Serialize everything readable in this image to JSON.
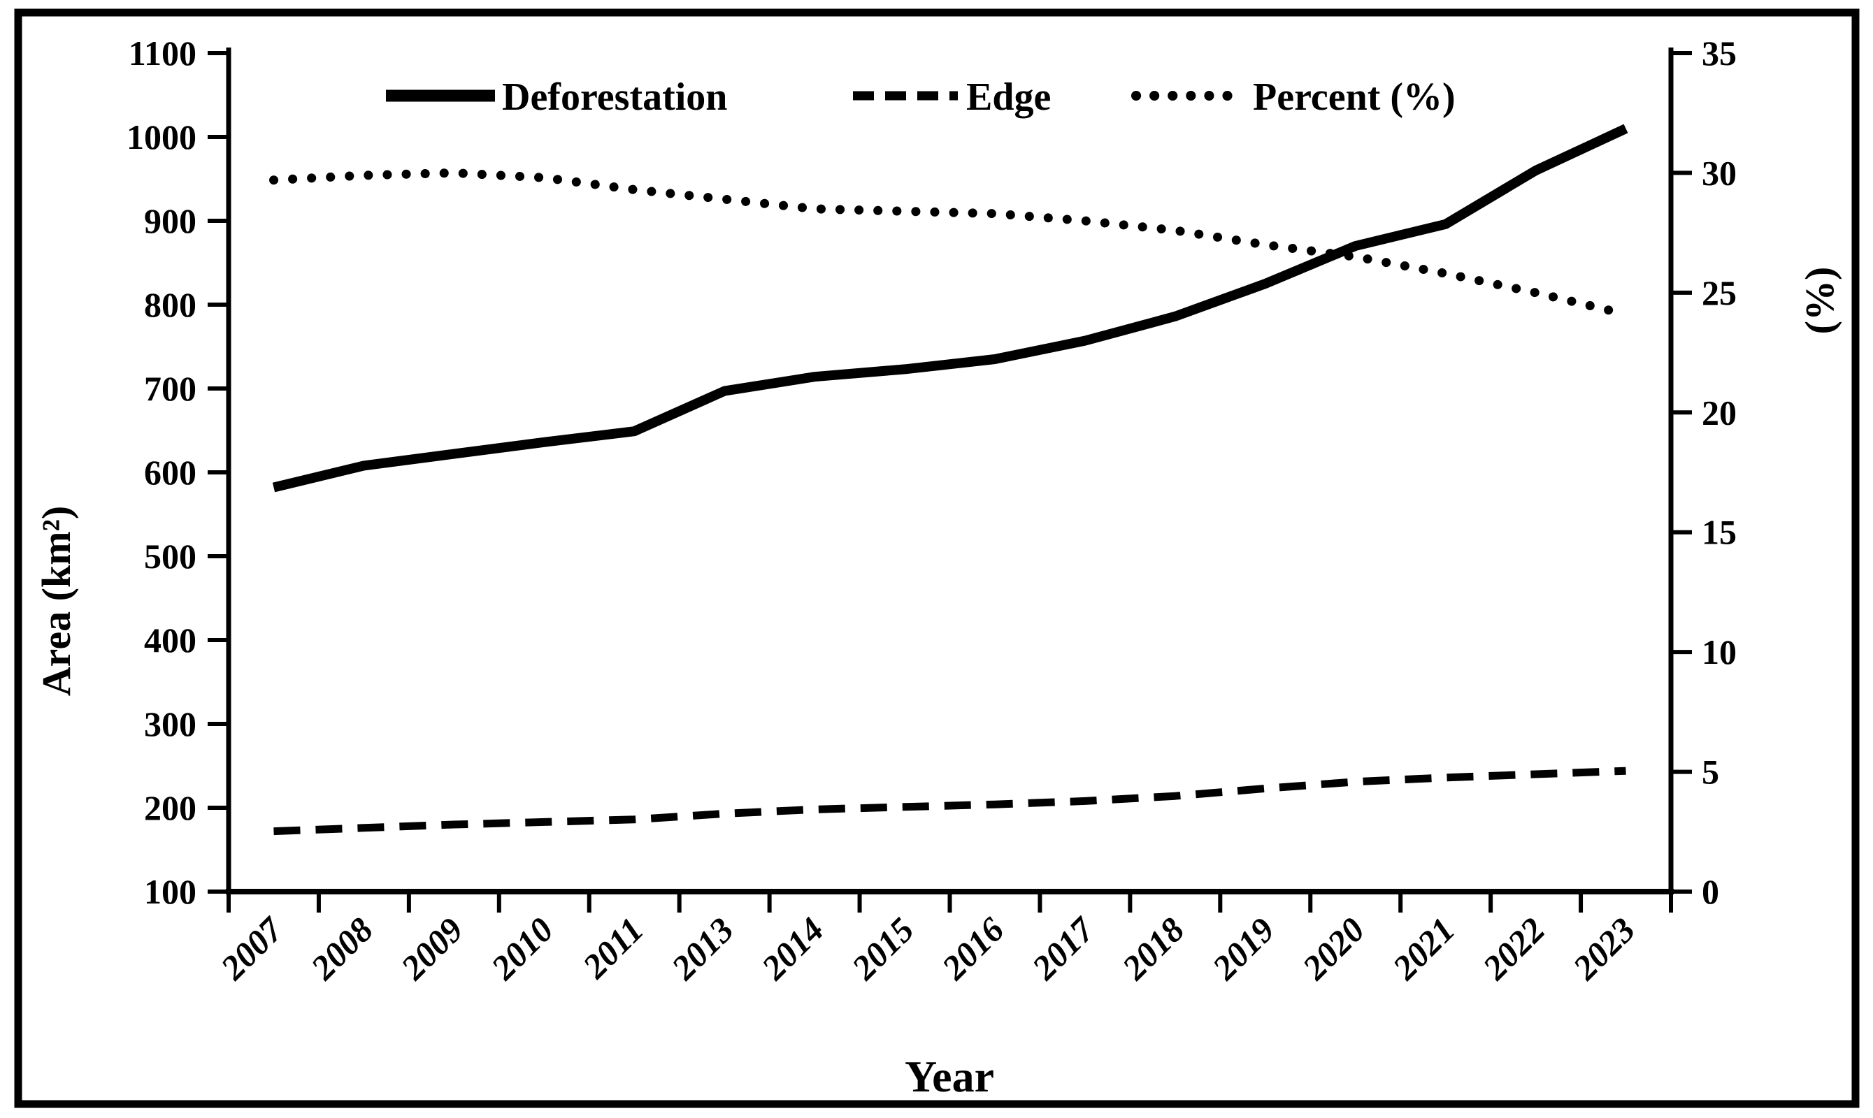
{
  "figure": {
    "background_color": "#ffffff",
    "border_color": "#000000",
    "line_color": "#000000"
  },
  "chart_data": {
    "type": "line",
    "title": "",
    "xlabel": "Year",
    "ylabel_left": "Area (km²)",
    "ylabel_right": "(%)",
    "categories": [
      "2007",
      "2008",
      "2009",
      "2010",
      "2011",
      "2013",
      "2014",
      "2015",
      "2016",
      "2017",
      "2018",
      "2019",
      "2020",
      "2021",
      "2022",
      "2023"
    ],
    "series": [
      {
        "name": "Deforestation",
        "axis": "left",
        "style": "solid",
        "values": [
          582,
          608,
          622,
          636,
          649,
          697,
          714,
          723,
          735,
          757,
          786,
          825,
          870,
          896,
          960,
          1010
        ]
      },
      {
        "name": "Edge",
        "axis": "left",
        "style": "dashed",
        "values": [
          172,
          176,
          180,
          183,
          186,
          193,
          198,
          201,
          204,
          208,
          214,
          223,
          231,
          236,
          240,
          244
        ]
      },
      {
        "name": "Percent (%)",
        "axis": "right",
        "style": "dotted",
        "values": [
          29.7,
          29.9,
          30.0,
          29.8,
          29.3,
          28.9,
          28.5,
          28.4,
          28.3,
          28.0,
          27.6,
          27.0,
          26.5,
          25.8,
          25.0,
          24.1
        ]
      }
    ],
    "y_left": {
      "min": 100,
      "max": 1100,
      "step": 100
    },
    "y_right": {
      "min": 0,
      "max": 35,
      "step": 5
    },
    "grid": false,
    "legend_position": "top-center"
  }
}
